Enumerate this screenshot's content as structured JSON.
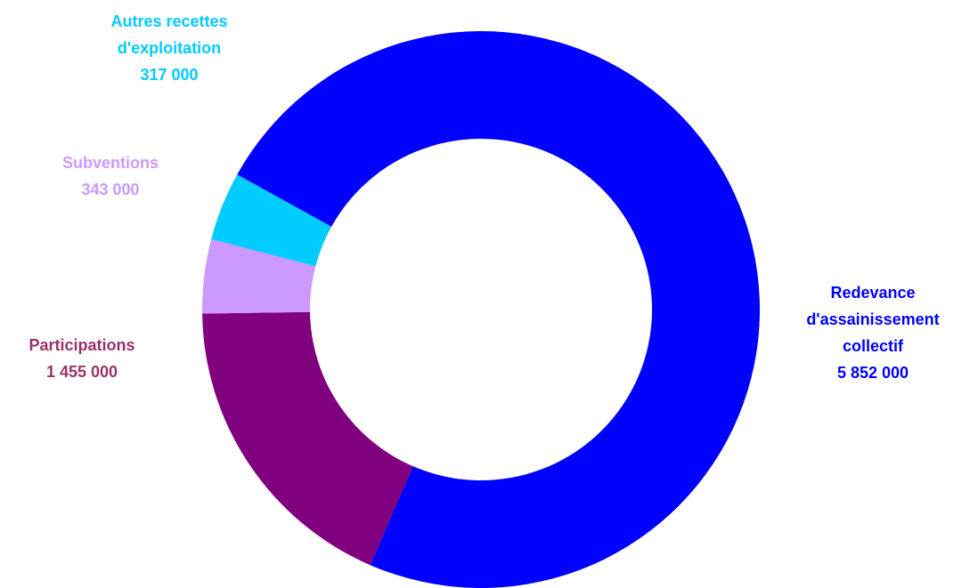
{
  "chart_data": {
    "type": "pie",
    "title": "",
    "donut": true,
    "legend": "none",
    "start_angle_deg": 299,
    "slices": [
      {
        "name": "Redevance d'assainissement collectif",
        "label_lines": [
          "Redevance",
          "d'assainissement",
          "collectif"
        ],
        "value": 5852000,
        "value_label": "5 852 000",
        "color": "#0000FF",
        "label_color": "#0000FF"
      },
      {
        "name": "Participations",
        "label_lines": [
          "Participations"
        ],
        "value": 1455000,
        "value_label": "1 455 000",
        "color": "#800080",
        "label_color": "#993366"
      },
      {
        "name": "Subventions",
        "label_lines": [
          "Subventions"
        ],
        "value": 343000,
        "value_label": "343 000",
        "color": "#CC99FF",
        "label_color": "#CC99FF"
      },
      {
        "name": "Autres recettes d'exploitation",
        "label_lines": [
          "Autres recettes",
          "d'exploitation"
        ],
        "value": 317000,
        "value_label": "317 000",
        "color": "#00CCFF",
        "label_color": "#00CCFF"
      }
    ]
  }
}
